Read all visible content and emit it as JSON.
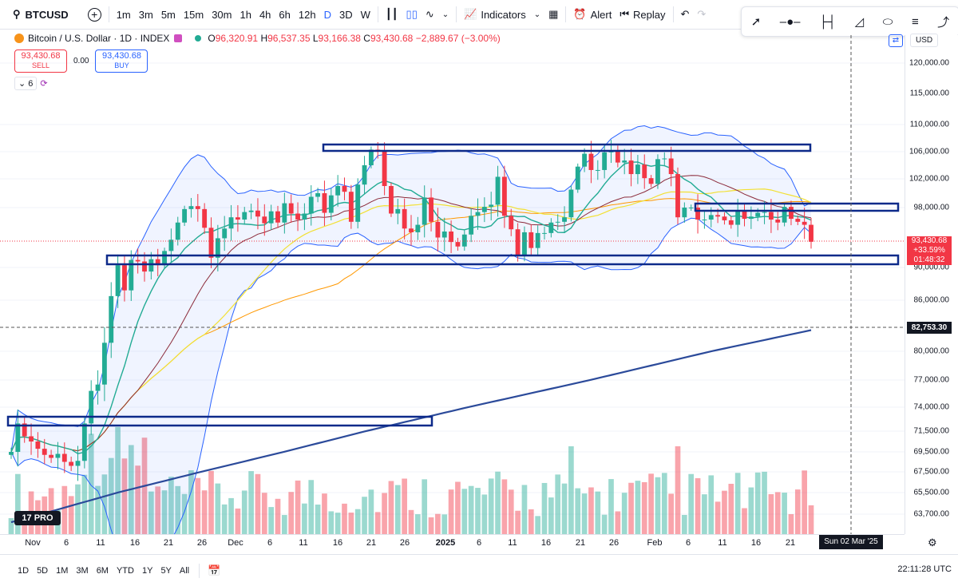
{
  "toolbar": {
    "symbol": "BTCUSD",
    "intervals": [
      "1m",
      "3m",
      "5m",
      "15m",
      "30m",
      "1h",
      "4h",
      "6h",
      "12h",
      "D",
      "3D",
      "W"
    ],
    "active_interval": "D",
    "indicators_label": "Indicators",
    "alert_label": "Alert",
    "replay_label": "Replay"
  },
  "drawing_tools": [
    "trend-line-icon",
    "horizontal-ray-icon",
    "range-icon",
    "fib-icon",
    "ellipse-icon",
    "lines-icon",
    "curve-icon"
  ],
  "legend": {
    "title": "Bitcoin / U.S. Dollar · 1D · INDEX",
    "open_label": "O",
    "open": "96,320.91",
    "high_label": "H",
    "high": "96,537.35",
    "low_label": "L",
    "low": "93,166.38",
    "close_label": "C",
    "close": "93,430.68",
    "change": "−2,889.67 (−3.00%)"
  },
  "trade": {
    "sell_price": "93,430.68",
    "sell_label": "SELL",
    "spread": "0.00",
    "buy_price": "93,430.68",
    "buy_label": "BUY"
  },
  "indicator_count": "6",
  "currency": "USD",
  "y_axis_labels": [
    "120,000.00",
    "115,000.00",
    "110,000.00",
    "106,000.00",
    "102,000.00",
    "98,000.00",
    "90,000.00",
    "86,000.00",
    "80,000.00",
    "77,000.00",
    "74,000.00",
    "71,500.00",
    "69,500.00",
    "67,500.00",
    "65,500.00",
    "63,700.00"
  ],
  "price_tag": {
    "price": "93,430.68",
    "change": "+33.59%",
    "countdown": "01:48:32"
  },
  "crosshair_price": "82,753.30",
  "crosshair_date": "Sun 02 Mar '25",
  "x_axis_labels": [
    {
      "t": "Nov",
      "bold": false
    },
    {
      "t": "6",
      "bold": false
    },
    {
      "t": "11",
      "bold": false
    },
    {
      "t": "16",
      "bold": false
    },
    {
      "t": "21",
      "bold": false
    },
    {
      "t": "26",
      "bold": false
    },
    {
      "t": "Dec",
      "bold": false
    },
    {
      "t": "6",
      "bold": false
    },
    {
      "t": "11",
      "bold": false
    },
    {
      "t": "16",
      "bold": false
    },
    {
      "t": "21",
      "bold": false
    },
    {
      "t": "26",
      "bold": false
    },
    {
      "t": "2025",
      "bold": true
    },
    {
      "t": "6",
      "bold": false
    },
    {
      "t": "11",
      "bold": false
    },
    {
      "t": "16",
      "bold": false
    },
    {
      "t": "21",
      "bold": false
    },
    {
      "t": "26",
      "bold": false
    },
    {
      "t": "Feb",
      "bold": false
    },
    {
      "t": "6",
      "bold": false
    },
    {
      "t": "11",
      "bold": false
    },
    {
      "t": "16",
      "bold": false
    },
    {
      "t": "21",
      "bold": false
    }
  ],
  "ranges": [
    "1D",
    "5D",
    "1M",
    "3M",
    "6M",
    "YTD",
    "1Y",
    "5Y",
    "All"
  ],
  "clock": "22:11:28 UTC",
  "logo_text": "17 PRO",
  "colors": {
    "up": "#22ab94",
    "down": "#f23645",
    "accent": "#2962ff",
    "box": "#0d2a8a",
    "ma200": "#2b4a9a"
  },
  "chart_data": {
    "type": "candlestick",
    "symbol": "BTCUSD",
    "close_values": [
      69500,
      72300,
      71000,
      70500,
      69800,
      69200,
      68900,
      69300,
      68500,
      68100,
      68600,
      72300,
      75800,
      76500,
      81000,
      86500,
      90300,
      87200,
      91000,
      90800,
      89500,
      91100,
      90300,
      92200,
      93700,
      96000,
      97800,
      98200,
      97800,
      95300,
      91300,
      93900,
      95200,
      96700,
      96400,
      97400,
      97600,
      96800,
      95900,
      97500,
      96000,
      98600,
      97200,
      96400,
      97200,
      99500,
      100000,
      97300,
      99700,
      101000,
      100200,
      96100,
      101200,
      104000,
      106300,
      106100,
      101000,
      97200,
      97800,
      95200,
      94700,
      95700,
      99400,
      96100,
      94000,
      94800,
      93400,
      92800,
      94400,
      96900,
      97400,
      98100,
      98400,
      102300,
      96900,
      95100,
      91600,
      94700,
      92600,
      94600,
      94600,
      96000,
      96100,
      96700,
      100500,
      103800,
      105700,
      103300,
      103300,
      105900,
      106200,
      104400,
      104700,
      102700,
      104100,
      102100,
      101300,
      104900,
      105000,
      102700,
      96700,
      98000,
      98000,
      96400,
      96400,
      97000,
      96800,
      96300,
      95700,
      97600,
      96500,
      96800,
      97300,
      97400,
      96400,
      96000,
      98100,
      96500,
      96100,
      95700,
      93430
    ],
    "volume_note": "volume bars shown at bottom",
    "price_range": [
      63700,
      120000
    ],
    "horizontal_boxes": [
      "resistance ~106,000-107,000",
      "support ~91,000-92,000",
      "range ~97,500-98,500",
      "old range ~72,000-73,000"
    ]
  }
}
